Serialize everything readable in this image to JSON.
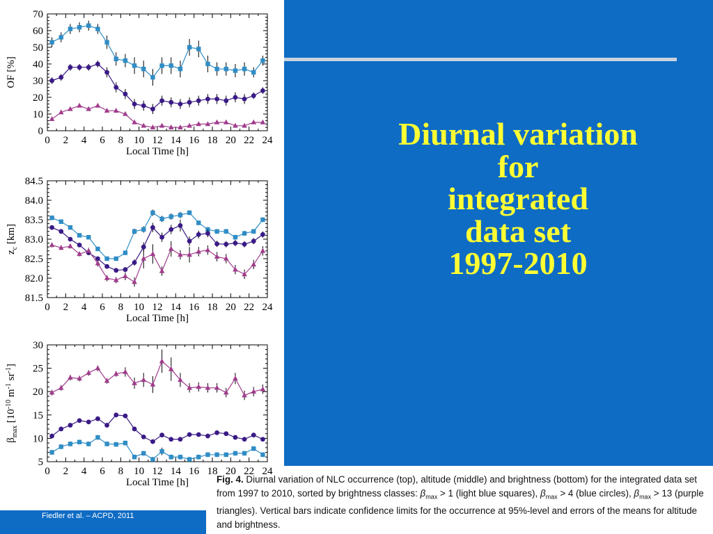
{
  "slide": {
    "title_lines": [
      "Diurnal variation",
      "for",
      "integrated",
      "data set",
      "1997-2010"
    ],
    "footer": "Fiedler et al. – ACPD, 2011"
  },
  "caption": {
    "label": "Fig. 4.",
    "text1": " Diurnal variation of NLC occurrence (top), altitude (middle) and brightness (bottom) for the integrated data set from 1997 to 2010, sorted by brightness classes: ",
    "beta": "β",
    "max": "max",
    "cond1": " > 1 (light blue squares), ",
    "cond2": " > 4 (blue circles), ",
    "cond3": " > 13 (purple triangles). Vertical bars indicate confidence limits for the occurrence at 95%-level and errors of the means for altitude and brightness."
  },
  "colors": {
    "light_blue": "#2f8dc6",
    "blue": "#3a1a86",
    "purple": "#a03c8c",
    "panel": "#0f6cc4",
    "title": "#ffff33"
  },
  "chart_data": [
    {
      "type": "line",
      "panel": "top",
      "xlabel": "Local Time [h]",
      "ylabel": "OF [%]",
      "xlim": [
        0,
        24
      ],
      "ylim": [
        0,
        70
      ],
      "xticks": [
        0,
        2,
        4,
        6,
        8,
        10,
        12,
        14,
        16,
        18,
        20,
        22,
        24
      ],
      "yticks": [
        0,
        10,
        20,
        30,
        40,
        50,
        60,
        70
      ],
      "x": [
        0.5,
        1.5,
        2.5,
        3.5,
        4.5,
        5.5,
        6.5,
        7.5,
        8.5,
        9.5,
        10.5,
        11.5,
        12.5,
        13.5,
        14.5,
        15.5,
        16.5,
        17.5,
        18.5,
        19.5,
        20.5,
        21.5,
        22.5,
        23.5
      ],
      "series": [
        {
          "marker": "square",
          "values": [
            53,
            56,
            61,
            62,
            63,
            61,
            53,
            43,
            42,
            39,
            37,
            32,
            39,
            39,
            37,
            50,
            49,
            40,
            37,
            37,
            36,
            37,
            35,
            42
          ],
          "errors": [
            3,
            3,
            3,
            3,
            3,
            3,
            4,
            4,
            4,
            5,
            5,
            5,
            5,
            5,
            5,
            5,
            5,
            5,
            4,
            4,
            4,
            4,
            3,
            3
          ]
        },
        {
          "marker": "circle",
          "values": [
            30,
            32,
            38,
            38,
            38,
            40,
            35,
            26,
            22,
            16,
            15,
            13,
            18,
            17,
            16,
            17,
            18,
            19,
            19,
            18,
            20,
            19,
            21,
            24
          ],
          "errors": [
            2,
            2,
            2,
            2,
            2,
            2,
            3,
            3,
            3,
            3,
            3,
            3,
            3,
            3,
            3,
            3,
            3,
            3,
            3,
            3,
            3,
            3,
            2,
            2
          ]
        },
        {
          "marker": "triangle",
          "values": [
            7,
            11,
            13,
            15,
            13,
            15,
            12,
            12,
            10,
            5,
            3,
            2,
            3,
            2,
            2,
            3,
            4,
            4,
            5,
            5,
            3,
            3,
            5,
            5
          ],
          "errors": [
            1,
            1,
            1,
            1,
            1,
            1,
            1,
            1,
            1,
            1,
            1,
            1,
            1,
            1,
            1,
            1,
            1,
            1,
            1,
            1,
            1,
            1,
            1,
            1
          ]
        }
      ]
    },
    {
      "type": "line",
      "panel": "middle",
      "xlabel": "Local Time [h]",
      "ylabel": "zc [km]",
      "ylabel_main": "z",
      "ylabel_sub": "c",
      "ylabel_unit": " [km]",
      "xlim": [
        0,
        24
      ],
      "ylim": [
        81.5,
        84.5
      ],
      "xticks": [
        0,
        2,
        4,
        6,
        8,
        10,
        12,
        14,
        16,
        18,
        20,
        22,
        24
      ],
      "yticks": [
        81.5,
        82.0,
        82.5,
        83.0,
        83.5,
        84.0,
        84.5
      ],
      "ytick_labels": [
        "81.5",
        "82.0",
        "82.5",
        "83.0",
        "83.5",
        "84.0",
        "84.5"
      ],
      "x": [
        0.5,
        1.5,
        2.5,
        3.5,
        4.5,
        5.5,
        6.5,
        7.5,
        8.5,
        9.5,
        10.5,
        11.5,
        12.5,
        13.5,
        14.5,
        15.5,
        16.5,
        17.5,
        18.5,
        19.5,
        20.5,
        21.5,
        22.5,
        23.5
      ],
      "series": [
        {
          "marker": "square",
          "values": [
            83.55,
            83.45,
            83.3,
            83.1,
            83.05,
            82.75,
            82.5,
            82.5,
            82.65,
            83.2,
            83.25,
            83.68,
            83.52,
            83.58,
            83.62,
            83.68,
            83.42,
            83.25,
            83.2,
            83.2,
            83.05,
            83.15,
            83.2,
            83.5
          ],
          "errors": [
            0.05,
            0.05,
            0.05,
            0.05,
            0.05,
            0.05,
            0.05,
            0.05,
            0.05,
            0.07,
            0.08,
            0.08,
            0.08,
            0.08,
            0.08,
            0.06,
            0.06,
            0.06,
            0.06,
            0.06,
            0.06,
            0.06,
            0.06,
            0.06
          ]
        },
        {
          "marker": "circle",
          "values": [
            83.3,
            83.2,
            83.0,
            82.85,
            82.65,
            82.5,
            82.3,
            82.2,
            82.22,
            82.4,
            82.8,
            83.3,
            83.05,
            83.25,
            83.35,
            82.95,
            83.12,
            83.15,
            82.88,
            82.87,
            82.9,
            82.87,
            82.95,
            83.12
          ],
          "errors": [
            0.05,
            0.05,
            0.05,
            0.05,
            0.05,
            0.05,
            0.05,
            0.05,
            0.05,
            0.08,
            0.12,
            0.12,
            0.12,
            0.12,
            0.15,
            0.12,
            0.1,
            0.1,
            0.08,
            0.08,
            0.08,
            0.08,
            0.08,
            0.08
          ]
        },
        {
          "marker": "triangle",
          "values": [
            82.85,
            82.78,
            82.82,
            82.62,
            82.7,
            82.38,
            82.0,
            81.95,
            82.05,
            81.9,
            82.5,
            82.62,
            82.18,
            82.75,
            82.6,
            82.6,
            82.68,
            82.72,
            82.55,
            82.5,
            82.22,
            82.1,
            82.35,
            82.7
          ],
          "errors": [
            0.06,
            0.06,
            0.06,
            0.06,
            0.08,
            0.08,
            0.08,
            0.08,
            0.1,
            0.12,
            0.25,
            0.25,
            0.12,
            0.2,
            0.12,
            0.2,
            0.12,
            0.12,
            0.12,
            0.12,
            0.12,
            0.12,
            0.12,
            0.12
          ]
        }
      ]
    },
    {
      "type": "line",
      "panel": "bottom",
      "xlabel": "Local Time [h]",
      "ylabel": "βmax [10-10 m-1 sr-1]",
      "ylabel_main": "β",
      "ylabel_sub": "max",
      "ylabel_unit": " [10",
      "ylabel_exp1": "-10",
      "ylabel_unit2": " m",
      "ylabel_exp2": "-1",
      "ylabel_unit3": " sr",
      "ylabel_exp3": "-1",
      "ylabel_close": "]",
      "xlim": [
        0,
        24
      ],
      "ylim": [
        5,
        30
      ],
      "xticks": [
        0,
        2,
        4,
        6,
        8,
        10,
        12,
        14,
        16,
        18,
        20,
        22,
        24
      ],
      "yticks": [
        5,
        10,
        15,
        20,
        25,
        30
      ],
      "x": [
        0.5,
        1.5,
        2.5,
        3.5,
        4.5,
        5.5,
        6.5,
        7.5,
        8.5,
        9.5,
        10.5,
        11.5,
        12.5,
        13.5,
        14.5,
        15.5,
        16.5,
        17.5,
        18.5,
        19.5,
        20.5,
        21.5,
        22.5,
        23.5
      ],
      "series": [
        {
          "marker": "square",
          "values": [
            7.0,
            8.2,
            8.8,
            9.2,
            8.8,
            10.2,
            8.8,
            8.7,
            9.0,
            6.0,
            6.8,
            5.5,
            7.2,
            6.0,
            6.0,
            5.5,
            6.0,
            6.5,
            6.5,
            6.5,
            6.8,
            6.8,
            7.8,
            6.5
          ],
          "errors": [
            0.5,
            0.5,
            0.5,
            0.5,
            0.5,
            0.5,
            0.5,
            0.5,
            0.5,
            0.5,
            0.5,
            0.5,
            0.8,
            0.5,
            0.5,
            0.5,
            0.5,
            0.5,
            0.5,
            0.5,
            0.5,
            0.5,
            0.5,
            0.5
          ]
        },
        {
          "marker": "circle",
          "values": [
            10.5,
            12.0,
            12.8,
            13.8,
            13.5,
            14.2,
            12.8,
            15.0,
            14.8,
            12.0,
            10.3,
            9.3,
            10.7,
            9.8,
            9.8,
            10.8,
            10.8,
            10.5,
            11.2,
            11.0,
            10.2,
            9.8,
            10.7,
            9.8
          ],
          "errors": [
            0.4,
            0.4,
            0.4,
            0.4,
            0.4,
            0.4,
            0.4,
            0.4,
            0.4,
            0.4,
            0.4,
            0.4,
            0.4,
            0.4,
            0.4,
            0.4,
            0.4,
            0.4,
            0.4,
            0.4,
            0.4,
            0.4,
            0.4,
            0.4
          ]
        },
        {
          "marker": "triangle",
          "values": [
            19.8,
            20.8,
            23.0,
            22.8,
            24.0,
            25.0,
            22.3,
            23.8,
            24.2,
            21.8,
            22.5,
            21.5,
            26.5,
            24.8,
            22.5,
            20.8,
            21.0,
            20.8,
            20.8,
            19.8,
            22.8,
            19.2,
            20.0,
            20.5
          ],
          "errors": [
            0.6,
            0.6,
            0.6,
            0.6,
            0.6,
            0.6,
            0.6,
            0.6,
            1.0,
            1.2,
            1.5,
            1.8,
            2.5,
            2.5,
            1.5,
            1.0,
            1.0,
            1.0,
            1.0,
            1.0,
            1.2,
            1.0,
            1.0,
            1.0
          ]
        }
      ]
    }
  ]
}
